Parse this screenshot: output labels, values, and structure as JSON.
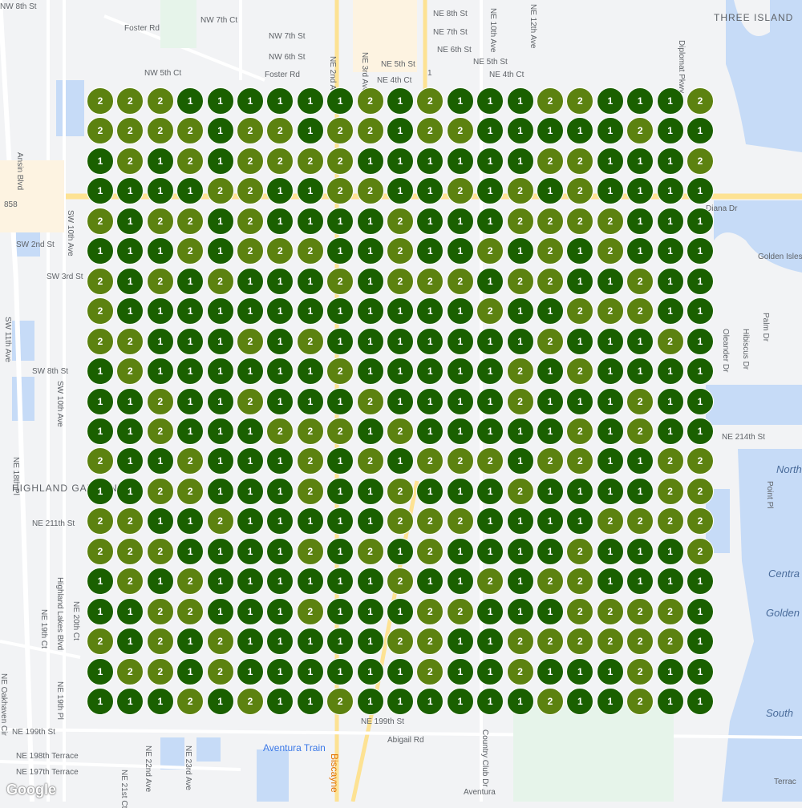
{
  "map": {
    "attribution": "Google",
    "labels": [
      "THREE ISLAND",
      "Foster Rd",
      "Foster Rd",
      "NW 8th St",
      "NW 7th Ct",
      "NW 7th St",
      "NW 6th St",
      "NW 5th Ct",
      "NE 8th St",
      "NE 7th St",
      "NE 6th St",
      "NE 5th St",
      "NE 4th Ct",
      "NE 4th Ct",
      "Diplomat Pkwy",
      "Ansin Blvd",
      "SW 2nd St",
      "SW 3rd St",
      "SW 10th Ave",
      "SW 11th Ave",
      "SW 8th St",
      "SW 10th Ave",
      "HIGHLAND GARDENS",
      "NE 18th Pl",
      "NE 211th St",
      "Highland Lakes Blvd",
      "NE 19th Ct",
      "NE 20th Ct",
      "NE 19th Pl",
      "NE Oakhaven Cir",
      "NE 199th St",
      "NE 198th Terrace",
      "NE 197th Terrace",
      "NE 22nd Ave",
      "NE 21st Ct",
      "NE 23rd Ave",
      "Aventura Train",
      "Biscayne",
      "Aventura",
      "Abigail Rd",
      "NE 199th St",
      "Country Club Dr",
      "Oleander Dr",
      "Hibiscus Dr",
      "Palm Dr",
      "Golden Isles Dr",
      "NE 214th St",
      "North",
      "Point Pl",
      "Centra",
      "Golden",
      "South",
      "Diana Dr",
      "858",
      "1",
      "Terrac",
      "NE 2nd Ave",
      "NE 3rd Ave",
      "NE 10th Ave",
      "NE 12th Ave",
      "NE 5th St"
    ],
    "road_shield_icons": [
      "route-858-shield",
      "us-1-shield"
    ],
    "transit_icon": "train-station-icon"
  },
  "cluster_colors": {
    "1": "#1a6000",
    "2": "#5c8210"
  },
  "grid": {
    "rows": [
      "222111111212111221112",
      "222212212212211111211",
      "121212222111111221112",
      "111122112211212121111",
      "212212111121112222111",
      "111212221121121212111",
      "212121112122212211211",
      "211111111111121122211",
      "221112121111111211121",
      "121111112111112121111",
      "112112111211112111211",
      "112111222121111121211",
      "211211121212221221122",
      "112211121121112111122",
      "221121111122211112222",
      "222111121212111121112",
      "121211111121121221111",
      "112211121112211122221",
      "212121111122112222221",
      "122121111112112111211",
      "111212112111111211211"
    ]
  }
}
